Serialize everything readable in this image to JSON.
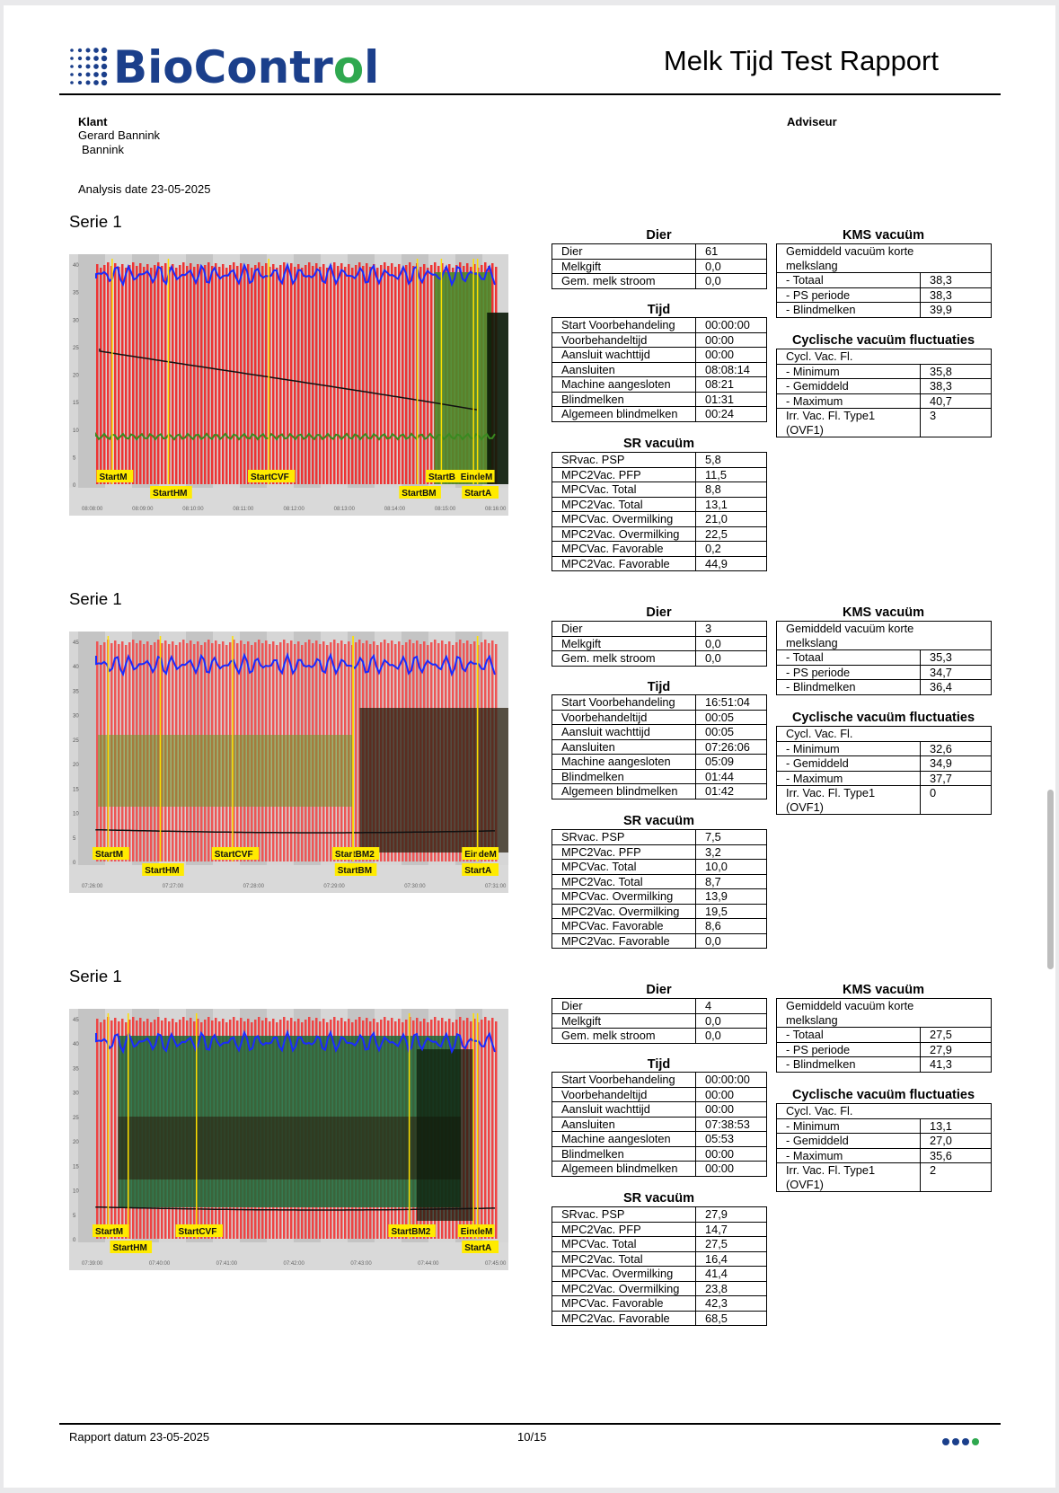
{
  "header": {
    "brand": "BioControl",
    "title": "Melk Tijd Test Rapport",
    "colors": {
      "brand_blue": "#1b3f8b",
      "brand_green": "#2fa84f"
    }
  },
  "client": {
    "klant_label": "Klant",
    "name_line1": "Gerard Bannink",
    "name_line2": "Bannink",
    "adviseur_label": "Adviseur",
    "analysis_date": "Analysis date 23-05-2025"
  },
  "series": [
    {
      "title": "Serie 1",
      "chart": {
        "markers": [
          "StartM",
          "StartHM",
          "StartCVF",
          "StartBM",
          "StartB",
          "EindeM",
          "StartA"
        ],
        "x_ticks": [
          "08:08:00",
          "08:09:00",
          "08:10:00",
          "08:11:00",
          "08:12:00",
          "08:13:00",
          "08:14:00",
          "08:15:00",
          "08:16:00"
        ],
        "y_ticks": [
          "40",
          "35",
          "30",
          "25",
          "20",
          "15",
          "10",
          "5",
          "0"
        ]
      },
      "dier_title": "Dier",
      "dier": [
        [
          "Dier",
          "61"
        ],
        [
          "Melkgift",
          "0,0"
        ],
        [
          "Gem. melk stroom",
          "0,0"
        ]
      ],
      "tijd_title": "Tijd",
      "tijd": [
        [
          "Start Voorbehandeling",
          "00:00:00"
        ],
        [
          "Voorbehandeltijd",
          "00:00"
        ],
        [
          "Aansluit wachttijd",
          "00:00"
        ],
        [
          "Aansluiten",
          "08:08:14"
        ],
        [
          "Machine aangesloten",
          "08:21"
        ],
        [
          "Blindmelken",
          "01:31"
        ],
        [
          "Algemeen blindmelken",
          "00:24"
        ]
      ],
      "sr_title": "SR vacuüm",
      "sr": [
        [
          "SRvac. PSP",
          "5,8"
        ],
        [
          "MPC2Vac. PFP",
          "11,5"
        ],
        [
          "MPCVac. Total",
          "8,8"
        ],
        [
          "MPC2Vac. Total",
          "13,1"
        ],
        [
          "MPCVac. Overmilking",
          "21,0"
        ],
        [
          "MPC2Vac. Overmilking",
          "22,5"
        ],
        [
          "MPCVac. Favorable",
          "0,2"
        ],
        [
          "MPC2Vac. Favorable",
          "44,9"
        ]
      ],
      "kms_title": "KMS vacuüm",
      "kms": [
        [
          "Gemiddeld vacuüm korte melkslang",
          ""
        ],
        [
          " - Totaal",
          "38,3"
        ],
        [
          " - PS periode",
          "38,3"
        ],
        [
          " - Blindmelken",
          "39,9"
        ]
      ],
      "cyc_title": "Cyclische vacuüm fluctuaties",
      "cyc": [
        [
          "Cycl. Vac. Fl.",
          ""
        ],
        [
          " - Minimum",
          "35,8"
        ],
        [
          " - Gemiddeld",
          "38,3"
        ],
        [
          " - Maximum",
          "40,7"
        ],
        [
          "Irr. Vac. Fl. Type1 (OVF1)",
          "3"
        ]
      ]
    },
    {
      "title": "Serie 1",
      "chart": {
        "markers": [
          "StartM",
          "StartHM",
          "StartCVF",
          "StartBM2",
          "StartBM",
          "EindeM",
          "StartA"
        ],
        "x_ticks": [
          "07:26:00",
          "07:27:00",
          "07:28:00",
          "07:29:00",
          "07:30:00",
          "07:31:00"
        ],
        "y_ticks": [
          "45",
          "40",
          "35",
          "30",
          "25",
          "20",
          "15",
          "10",
          "5",
          "0"
        ]
      },
      "dier_title": "Dier",
      "dier": [
        [
          "Dier",
          "3"
        ],
        [
          "Melkgift",
          "0,0"
        ],
        [
          "Gem. melk stroom",
          "0,0"
        ]
      ],
      "tijd_title": "Tijd",
      "tijd": [
        [
          "Start Voorbehandeling",
          "16:51:04"
        ],
        [
          "Voorbehandeltijd",
          "00:05"
        ],
        [
          "Aansluit wachttijd",
          "00:05"
        ],
        [
          "Aansluiten",
          "07:26:06"
        ],
        [
          "Machine aangesloten",
          "05:09"
        ],
        [
          "Blindmelken",
          "01:44"
        ],
        [
          "Algemeen blindmelken",
          "01:42"
        ]
      ],
      "sr_title": "SR vacuüm",
      "sr": [
        [
          "SRvac. PSP",
          "7,5"
        ],
        [
          "MPC2Vac. PFP",
          "3,2"
        ],
        [
          "MPCVac. Total",
          "10,0"
        ],
        [
          "MPC2Vac. Total",
          "8,7"
        ],
        [
          "MPCVac. Overmilking",
          "13,9"
        ],
        [
          "MPC2Vac. Overmilking",
          "19,5"
        ],
        [
          "MPCVac. Favorable",
          "8,6"
        ],
        [
          "MPC2Vac. Favorable",
          "0,0"
        ]
      ],
      "kms_title": "KMS vacuüm",
      "kms": [
        [
          "Gemiddeld vacuüm korte melkslang",
          ""
        ],
        [
          " - Totaal",
          "35,3"
        ],
        [
          " - PS periode",
          "34,7"
        ],
        [
          " - Blindmelken",
          "36,4"
        ]
      ],
      "cyc_title": "Cyclische vacuüm fluctuaties",
      "cyc": [
        [
          "Cycl. Vac. Fl.",
          ""
        ],
        [
          " - Minimum",
          "32,6"
        ],
        [
          " - Gemiddeld",
          "34,9"
        ],
        [
          " - Maximum",
          "37,7"
        ],
        [
          "Irr. Vac. Fl. Type1 (OVF1)",
          "0"
        ]
      ]
    },
    {
      "title": "Serie 1",
      "chart": {
        "markers": [
          "StartM",
          "StartHM",
          "StartCVF",
          "StartBM2",
          "EindeM",
          "StartA"
        ],
        "x_ticks": [
          "07:39:00",
          "07:40:00",
          "07:41:00",
          "07:42:00",
          "07:43:00",
          "07:44:00",
          "07:45:00"
        ],
        "y_ticks": [
          "45",
          "40",
          "35",
          "30",
          "25",
          "20",
          "15",
          "10",
          "5",
          "0"
        ]
      },
      "dier_title": "Dier",
      "dier": [
        [
          "Dier",
          "4"
        ],
        [
          "Melkgift",
          "0,0"
        ],
        [
          "Gem. melk stroom",
          "0,0"
        ]
      ],
      "tijd_title": "Tijd",
      "tijd": [
        [
          "Start Voorbehandeling",
          "00:00:00"
        ],
        [
          "Voorbehandeltijd",
          "00:00"
        ],
        [
          "Aansluit wachttijd",
          "00:00"
        ],
        [
          "Aansluiten",
          "07:38:53"
        ],
        [
          "Machine aangesloten",
          "05:53"
        ],
        [
          "Blindmelken",
          "00:00"
        ],
        [
          "Algemeen blindmelken",
          "00:00"
        ]
      ],
      "sr_title": "SR vacuüm",
      "sr": [
        [
          "SRvac. PSP",
          "27,9"
        ],
        [
          "MPC2Vac. PFP",
          "14,7"
        ],
        [
          "MPCVac. Total",
          "27,5"
        ],
        [
          "MPC2Vac. Total",
          "16,4"
        ],
        [
          "MPCVac. Overmilking",
          "41,4"
        ],
        [
          "MPC2Vac. Overmilking",
          "23,8"
        ],
        [
          "MPCVac. Favorable",
          "42,3"
        ],
        [
          "MPC2Vac. Favorable",
          "68,5"
        ]
      ],
      "kms_title": "KMS vacuüm",
      "kms": [
        [
          "Gemiddeld vacuüm korte melkslang",
          ""
        ],
        [
          " - Totaal",
          "27,5"
        ],
        [
          " - PS periode",
          "27,9"
        ],
        [
          " - Blindmelken",
          "41,3"
        ]
      ],
      "cyc_title": "Cyclische vacuüm fluctuaties",
      "cyc": [
        [
          "Cycl. Vac. Fl.",
          ""
        ],
        [
          " - Minimum",
          "13,1"
        ],
        [
          " - Gemiddeld",
          "27,0"
        ],
        [
          " - Maximum",
          "35,6"
        ],
        [
          "Irr. Vac. Fl. Type1 (OVF1)",
          "2"
        ]
      ]
    }
  ],
  "footer": {
    "rapport_datum": "Rapport datum 23-05-2025",
    "page": "10/15",
    "dot_colors": [
      "#1b3f8b",
      "#1b3f8b",
      "#1b3f8b",
      "#2fa84f"
    ]
  }
}
